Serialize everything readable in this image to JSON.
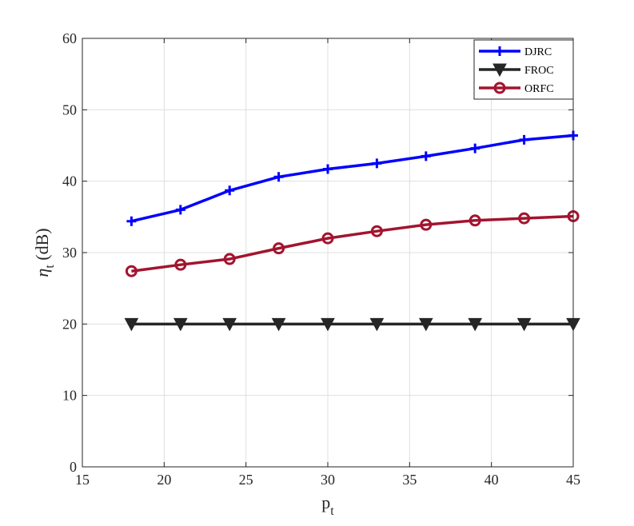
{
  "chart_data": {
    "type": "line",
    "title": "",
    "xlabel": {
      "main": "p",
      "sub": "t"
    },
    "ylabel": {
      "main": "η",
      "sub": "t",
      "rest": " (dB)"
    },
    "xlim": [
      15,
      45
    ],
    "ylim": [
      0,
      60
    ],
    "xticks": [
      "15",
      "20",
      "25",
      "30",
      "35",
      "40",
      "45"
    ],
    "yticks": [
      "0",
      "10",
      "20",
      "30",
      "40",
      "50",
      "60"
    ],
    "grid": true,
    "legend_position": "top-right",
    "x": [
      18,
      21,
      24,
      27,
      30,
      33,
      36,
      39,
      42,
      45
    ],
    "series": [
      {
        "name": "DJRC",
        "marker": "plus",
        "color": "#0000ff",
        "values": [
          34.4,
          36.0,
          38.7,
          40.6,
          41.7,
          42.5,
          43.5,
          44.6,
          45.8,
          46.4
        ]
      },
      {
        "name": "FROC",
        "marker": "triangle-down",
        "color": "#262626",
        "values": [
          20.0,
          20.0,
          20.0,
          20.0,
          20.0,
          20.0,
          20.0,
          20.0,
          20.0,
          20.0
        ]
      },
      {
        "name": "ORFC",
        "marker": "circle",
        "color": "#a2142f",
        "values": [
          27.4,
          28.3,
          29.1,
          30.6,
          32.0,
          33.0,
          33.9,
          34.5,
          34.8,
          35.1
        ]
      }
    ]
  }
}
